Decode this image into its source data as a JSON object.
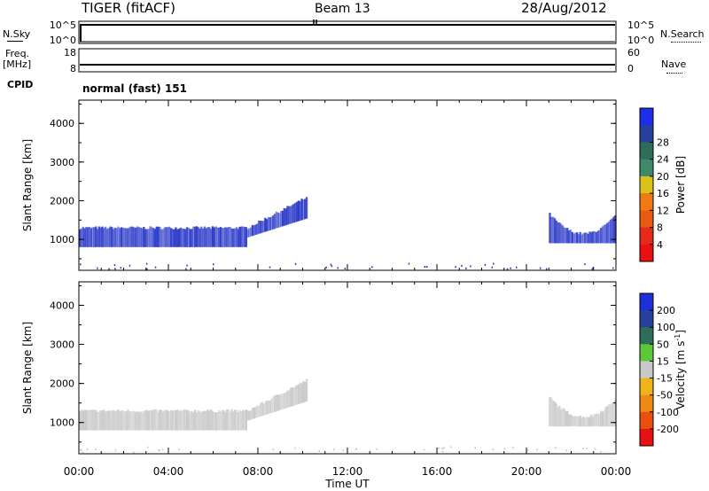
{
  "header": {
    "station": "TIGER (fitACF)",
    "beam": "Beam 13",
    "date": "28/Aug/2012"
  },
  "strip_labels": {
    "nsky": "N.Sky",
    "nsearch": "N.Search",
    "freq": "Freq.",
    "freq_unit": "[MHz]",
    "nave": "Nave",
    "cpid": "CPID",
    "cpid_value": "normal (fast) 151"
  },
  "noise_axis": {
    "left_ticks": [
      "10^5",
      "10^0"
    ],
    "right_ticks": [
      "10^5",
      "10^0"
    ]
  },
  "freq_axis": {
    "left_ticks": [
      "18",
      "8"
    ],
    "right_ticks": [
      "60",
      "0"
    ]
  },
  "colors": {
    "axis": "#000000",
    "noise_line": "#000000"
  },
  "chart_data": [
    {
      "type": "heatmap",
      "name": "power",
      "ylabel": "Slant Range [km]",
      "xlabel": "",
      "x_range": [
        0,
        24
      ],
      "ylim": [
        200,
        4600
      ],
      "y_ticks": [
        1000,
        2000,
        3000,
        4000
      ],
      "colorbar": {
        "label": "Power [dB]",
        "ticks": [
          "4",
          "8",
          "12",
          "16",
          "20",
          "24",
          "28"
        ],
        "colors": [
          "#1d2ee8",
          "#27409c",
          "#2e6c5c",
          "#3f8a6a",
          "#d9c21a",
          "#f07a14",
          "#e85a10",
          "#e52a18",
          "#e81010"
        ]
      },
      "echo_bands": [
        {
          "t0": 0.0,
          "t1": 7.5,
          "r_low": 800,
          "r_high": 1300,
          "color": "#2838c8"
        },
        {
          "t0": 7.5,
          "t1": 10.2,
          "r_low": 1050,
          "r_high": 2100,
          "color": "#2838c8"
        },
        {
          "t0": 21.0,
          "t1": 24.0,
          "r_low": 800,
          "r_high": 1700,
          "color": "#2838c8"
        }
      ]
    },
    {
      "type": "heatmap",
      "name": "velocity",
      "ylabel": "Slant Range [km]",
      "xlabel": "Time UT",
      "x_range": [
        0,
        24
      ],
      "x_ticks": [
        "00:00",
        "04:00",
        "08:00",
        "12:00",
        "16:00",
        "20:00",
        "00:00"
      ],
      "ylim": [
        200,
        4600
      ],
      "y_ticks": [
        1000,
        2000,
        3000,
        4000
      ],
      "colorbar": {
        "label": "Velocity [m s",
        "label_superscript": "-1",
        "label_close": "]",
        "ticks": [
          "200",
          "100",
          "50",
          "15",
          "-15",
          "-50",
          "-100",
          "-200"
        ],
        "colors": [
          "#1f2fd8",
          "#27409c",
          "#2e6c5c",
          "#5cc838",
          "#c8c8c8",
          "#f0b418",
          "#f08a14",
          "#e85010",
          "#e81010"
        ]
      },
      "echo_bands": [
        {
          "t0": 0.0,
          "t1": 7.5,
          "r_low": 800,
          "r_high": 1300,
          "color": "#c8c8c8"
        },
        {
          "t0": 7.5,
          "t1": 10.2,
          "r_low": 1050,
          "r_high": 2100,
          "color": "#c8c8c8"
        },
        {
          "t0": 21.0,
          "t1": 24.0,
          "r_low": 800,
          "r_high": 1700,
          "color": "#c8c8c8"
        }
      ]
    }
  ]
}
